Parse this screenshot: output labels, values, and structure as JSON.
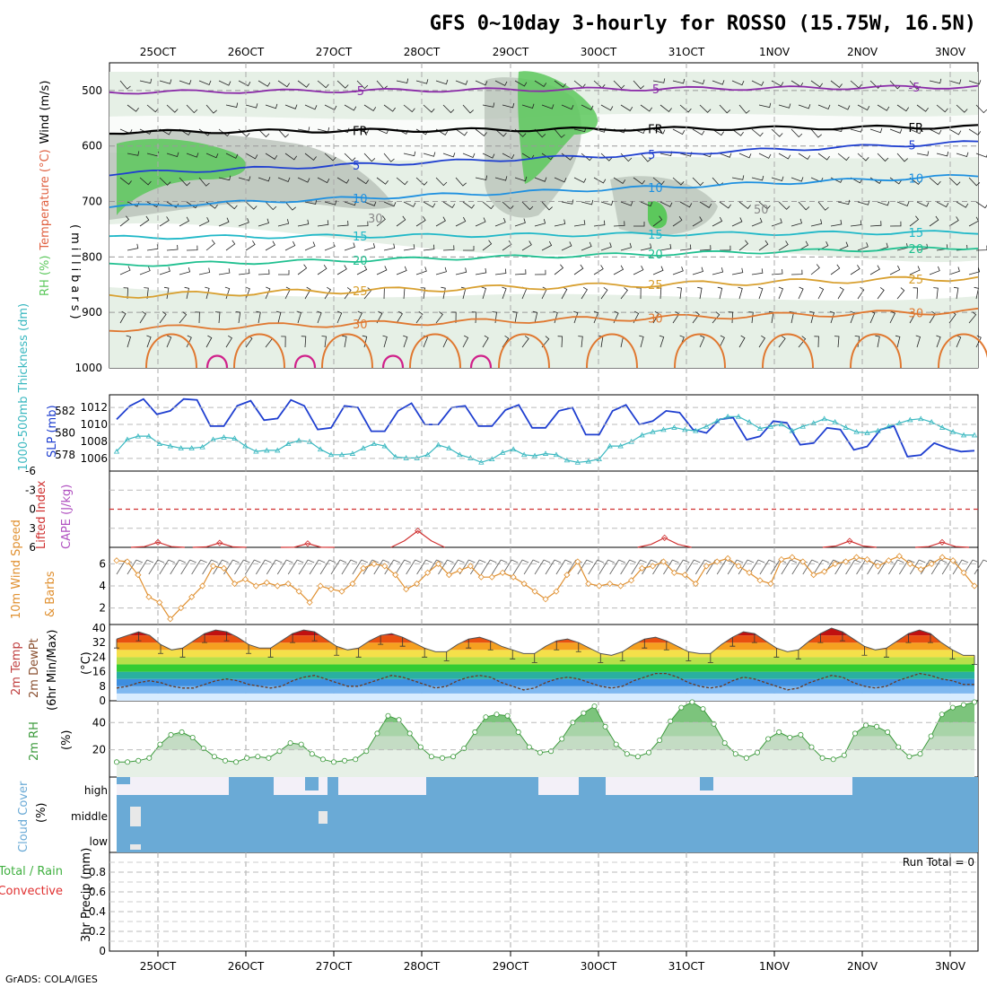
{
  "title": "GFS 0~10day 3-hourly for ROSSO (15.75W, 16.5N)",
  "credit": "GrADS: COLA/IGES",
  "run_total_label": "Run Total = 0",
  "colors": {
    "rh_green": "#5cc85c",
    "rh_gray": "#b4bdb4",
    "rh_light": "#e6f0e6",
    "slp": "#1f3fd0",
    "thickness": "#3ab8c0",
    "lifted_index": "#d03030",
    "cape": "#b050c0",
    "wind_speed": "#e09030",
    "rh2m": "#3c9a3c",
    "cloud": "#6aaad6",
    "freezing": "#000000"
  },
  "chart_data": [
    {
      "panel": "upper-air",
      "type": "contour",
      "ylabel_parts": [
        "RH (%)",
        "Temperature (°C)",
        "Wind (m/s)"
      ],
      "y_unit_label": "(millibars)",
      "ylim": [
        1000,
        450
      ],
      "yticks": [
        "500",
        "600",
        "700",
        "800",
        "900",
        "1000"
      ],
      "x_dates": [
        "25OCT",
        "26OCT",
        "27OCT",
        "28OCT",
        "29OCT",
        "30OCT",
        "31OCT",
        "1NOV",
        "2NOV",
        "3NOV"
      ],
      "temperature_contours": [
        {
          "label": "-5",
          "pressure": 503,
          "color": "#8a2aa8"
        },
        {
          "label": "FR",
          "pressure": 575,
          "color": "#000000"
        },
        {
          "label": "5",
          "pressure": 650,
          "color": "#1f3fd0"
        },
        {
          "label": "10",
          "pressure": 710,
          "color": "#1e90e0"
        },
        {
          "label": "15",
          "pressure": 765,
          "color": "#20b8c8"
        },
        {
          "label": "20",
          "pressure": 815,
          "color": "#20c090"
        },
        {
          "label": "25",
          "pressure": 870,
          "color": "#d8a030"
        },
        {
          "label": "30",
          "pressure": 930,
          "color": "#e07830"
        }
      ],
      "rh_labels": [
        "30",
        "50"
      ]
    },
    {
      "panel": "slp-thickness",
      "type": "line",
      "ylabel_left": "1000-500mb Thickness (dm)",
      "ylabel_right": "SLP (mb)",
      "left_ticks": [
        "582",
        "580",
        "578"
      ],
      "right_ticks": [
        "1012",
        "1010",
        "1008",
        "1006"
      ],
      "series": [
        {
          "name": "SLP (mb)",
          "axis": "right",
          "ylim": [
            1004.5,
            1013.5
          ],
          "values": [
            1010.6,
            1012.2,
            1013.0,
            1011.2,
            1011.6,
            1013.0,
            1012.9,
            1009.8,
            1009.8,
            1012.2,
            1012.8,
            1010.5,
            1010.7,
            1012.9,
            1012.2,
            1009.4,
            1009.6,
            1012.2,
            1012.0,
            1009.2,
            1009.2,
            1011.6,
            1012.5,
            1010.0,
            1010.0,
            1012.0,
            1012.2,
            1009.8,
            1009.8,
            1011.7,
            1012.3,
            1009.6,
            1009.6,
            1011.6,
            1012.0,
            1008.8,
            1008.8,
            1011.6,
            1012.3,
            1010.0,
            1010.4,
            1011.6,
            1011.4,
            1009.4,
            1009.0,
            1010.6,
            1010.8,
            1008.2,
            1008.6,
            1010.4,
            1010.2,
            1007.6,
            1007.8,
            1009.6,
            1009.4,
            1007.0,
            1007.4,
            1009.4,
            1009.8,
            1006.2,
            1006.4,
            1007.8,
            1007.2,
            1006.8,
            1006.9
          ]
        },
        {
          "name": "1000-500mb Thickness (dm)",
          "axis": "left",
          "ylim": [
            576.5,
            583.5
          ],
          "values": [
            578.3,
            579.4,
            579.7,
            579.7,
            579.0,
            578.8,
            578.6,
            578.6,
            578.7,
            579.4,
            579.6,
            579.5,
            578.8,
            578.3,
            578.4,
            578.4,
            579.0,
            579.3,
            579.2,
            578.5,
            578.0,
            578.0,
            578.1,
            578.6,
            579.0,
            578.8,
            577.8,
            577.7,
            577.7,
            578.0,
            578.9,
            578.6,
            578.0,
            577.7,
            577.3,
            577.6,
            578.2,
            578.5,
            578.0,
            577.9,
            578.1,
            578.0,
            577.5,
            577.3,
            577.4,
            577.6,
            578.8,
            578.8,
            579.2,
            579.8,
            580.1,
            580.3,
            580.5,
            580.3,
            580.2,
            580.6,
            581.1,
            581.5,
            581.5,
            581.0,
            580.4,
            580.6,
            580.8,
            580.2,
            580.6,
            580.9,
            581.3,
            581.0,
            580.5,
            580.1,
            580.0,
            580.2,
            580.6,
            580.9,
            581.2,
            581.3,
            581.0,
            580.5,
            580.1,
            579.8,
            579.8
          ]
        }
      ]
    },
    {
      "panel": "stability",
      "type": "line",
      "ylabel_left": "Lifted Index",
      "ylabel_right": "CAPE (J/kg)",
      "yticks": [
        "-6",
        "-3",
        "0",
        "3",
        "6"
      ],
      "ylim": [
        -6,
        6
      ],
      "lifted_index_bumps": [
        {
          "date_index": 0.0,
          "peak": 5.2
        },
        {
          "date_index": 0.7,
          "peak": 5.3
        },
        {
          "date_index": 1.7,
          "peak": 5.4
        },
        {
          "date_index": 2.95,
          "peak": 3.4
        },
        {
          "date_index": 5.75,
          "peak": 4.5
        },
        {
          "date_index": 7.85,
          "peak": 5.0
        },
        {
          "date_index": 8.9,
          "peak": 5.2
        }
      ]
    },
    {
      "panel": "10m-wind",
      "type": "line",
      "ylabel_parts": [
        "10m Wind Speed",
        "& Barbs",
        "(m/s)"
      ],
      "yticks": [
        "2",
        "4",
        "6"
      ],
      "ylim": [
        0.5,
        7.5
      ],
      "series": [
        {
          "name": "10m Wind Speed (m/s)",
          "values": [
            6.3,
            6.2,
            5.0,
            3.0,
            2.5,
            1.0,
            2.0,
            3.0,
            4.0,
            5.8,
            5.6,
            4.2,
            4.6,
            4.0,
            4.3,
            4.0,
            4.2,
            3.5,
            2.5,
            4.0,
            3.7,
            3.5,
            4.2,
            5.6,
            6.0,
            5.8,
            5.0,
            3.7,
            4.2,
            5.2,
            6.0,
            5.0,
            5.4,
            5.8,
            4.8,
            4.8,
            5.2,
            4.8,
            4.2,
            3.5,
            2.8,
            3.5,
            5.0,
            6.2,
            4.2,
            4.0,
            4.2,
            4.0,
            4.5,
            5.6,
            5.8,
            6.2,
            5.2,
            5.0,
            4.2,
            5.8,
            6.2,
            6.5,
            5.8,
            5.2,
            4.5,
            4.2,
            6.4,
            6.6,
            6.2,
            5.0,
            5.3,
            6.0,
            6.2,
            6.6,
            6.4,
            5.8,
            6.3,
            6.7,
            6.0,
            5.5,
            6.0,
            6.6,
            6.3,
            5.2,
            4.0
          ]
        }
      ]
    },
    {
      "panel": "2m-temp",
      "type": "area",
      "ylabel_parts": [
        "2m Temp",
        "2m DewPt",
        "(6hr Min/Max)",
        "(°C)"
      ],
      "yticks": [
        "0",
        "8",
        "16",
        "24",
        "32",
        "40"
      ],
      "ylim": [
        0,
        42
      ],
      "series": [
        {
          "name": "2m Temp (°C)",
          "values": [
            34,
            36,
            38,
            36,
            31,
            28,
            29,
            33,
            37,
            39,
            38,
            35,
            31,
            29,
            29,
            33,
            37,
            39,
            38,
            34,
            30,
            28,
            29,
            33,
            36,
            37,
            35,
            32,
            29,
            27,
            27,
            31,
            34,
            35,
            33,
            30,
            28,
            26,
            26,
            30,
            33,
            34,
            32,
            29,
            26,
            25,
            27,
            31,
            34,
            35,
            33,
            30,
            27,
            26,
            26,
            31,
            35,
            38,
            37,
            33,
            29,
            27,
            28,
            33,
            37,
            40,
            38,
            34,
            30,
            28,
            29,
            33,
            37,
            39,
            37,
            32,
            28,
            25,
            25
          ]
        },
        {
          "name": "2m DewPt (°C)",
          "values": [
            7,
            8,
            10,
            11,
            10,
            8,
            7,
            7,
            9,
            11,
            12,
            11,
            9,
            8,
            7,
            8,
            11,
            13,
            14,
            12,
            10,
            8,
            8,
            10,
            12,
            14,
            13,
            11,
            9,
            7,
            8,
            11,
            13,
            14,
            13,
            10,
            8,
            6,
            7,
            10,
            12,
            13,
            12,
            10,
            8,
            7,
            8,
            11,
            13,
            15,
            15,
            13,
            10,
            8,
            7,
            8,
            11,
            13,
            12,
            10,
            8,
            6,
            7,
            10,
            12,
            14,
            13,
            10,
            8,
            7,
            8,
            11,
            13,
            15,
            14,
            12,
            11,
            9,
            9
          ]
        }
      ]
    },
    {
      "panel": "2m-rh",
      "type": "area",
      "ylabel_parts": [
        "2m RH",
        "(%)"
      ],
      "yticks": [
        "20",
        "40"
      ],
      "ylim": [
        0,
        56
      ],
      "series": [
        {
          "name": "2m RH (%)",
          "values": [
            11,
            11,
            12,
            14,
            24,
            31,
            33,
            29,
            21,
            15,
            12,
            11,
            14,
            15,
            14,
            19,
            25,
            24,
            17,
            13,
            11,
            12,
            13,
            19,
            32,
            45,
            42,
            32,
            22,
            15,
            14,
            15,
            21,
            33,
            44,
            46,
            45,
            33,
            22,
            18,
            19,
            28,
            40,
            47,
            52,
            37,
            24,
            17,
            15,
            18,
            27,
            41,
            51,
            55,
            50,
            39,
            25,
            17,
            14,
            18,
            28,
            33,
            29,
            31,
            22,
            14,
            13,
            16,
            32,
            38,
            37,
            33,
            22,
            15,
            17,
            30,
            46,
            51,
            53,
            55
          ]
        }
      ]
    },
    {
      "panel": "cloud-cover",
      "type": "heatmap",
      "ylabel_parts": [
        "Cloud Cover",
        "(%)"
      ],
      "rows": [
        "high",
        "middle",
        "low"
      ]
    },
    {
      "panel": "precip",
      "type": "bar",
      "ylabel_parts": [
        "Total / Rain",
        "Convective",
        "3hr Precip (mm)"
      ],
      "yticks": [
        "0",
        "0.2",
        "0.4",
        "0.6",
        "0.8"
      ],
      "ylim": [
        0,
        1.0
      ],
      "values": []
    }
  ]
}
